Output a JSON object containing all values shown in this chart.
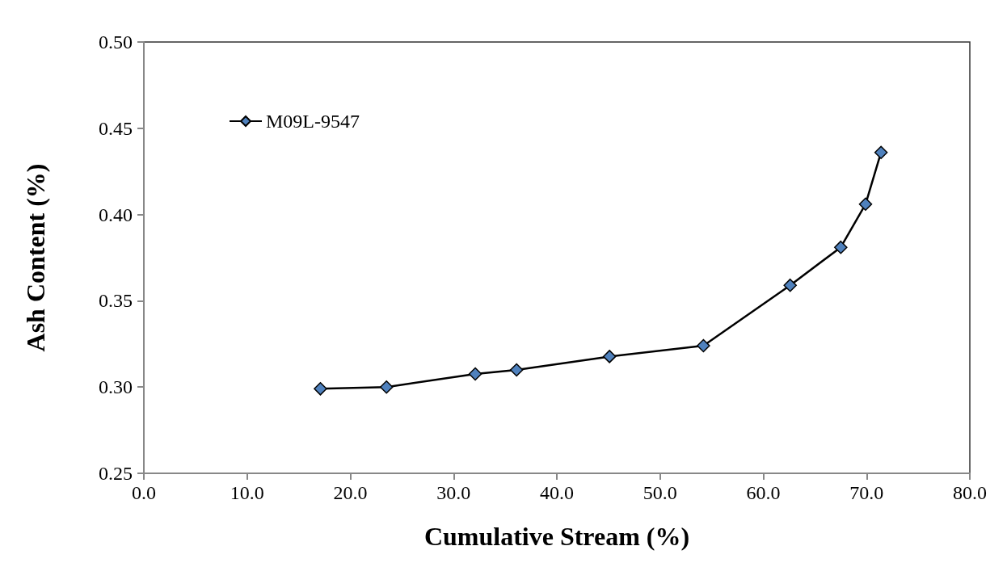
{
  "chart_data": {
    "type": "line",
    "xlabel": "Cumulative Stream (%)",
    "ylabel": "Ash Content (%)",
    "series": [
      {
        "name": "M09L-9547",
        "color": "#4f81bd",
        "x": [
          17.1,
          23.5,
          32.1,
          36.1,
          45.1,
          54.2,
          62.6,
          67.5,
          69.9,
          71.4
        ],
        "values": [
          0.299,
          0.3,
          0.3076,
          0.3099,
          0.3177,
          0.324,
          0.359,
          0.381,
          0.406,
          0.436
        ]
      }
    ],
    "xlim": [
      0,
      80
    ],
    "xticks": [
      {
        "value": 0,
        "label": "0.0"
      },
      {
        "value": 10,
        "label": "10.0"
      },
      {
        "value": 20,
        "label": "20.0"
      },
      {
        "value": 30,
        "label": "30.0"
      },
      {
        "value": 40,
        "label": "40.0"
      },
      {
        "value": 50,
        "label": "50.0"
      },
      {
        "value": 60,
        "label": "60.0"
      },
      {
        "value": 70,
        "label": "70.0"
      },
      {
        "value": 80,
        "label": "80.0"
      }
    ],
    "ylim": [
      0.25,
      0.5
    ],
    "yticks": [
      {
        "value": 0.25,
        "label": "0.25"
      },
      {
        "value": 0.3,
        "label": "0.30"
      },
      {
        "value": 0.35,
        "label": "0.35"
      },
      {
        "value": 0.4,
        "label": "0.40"
      },
      {
        "value": 0.45,
        "label": "0.45"
      },
      {
        "value": 0.5,
        "label": "0.50"
      }
    ],
    "grid": false,
    "legend": "top left",
    "marker": "diamond",
    "line_style": "solid"
  }
}
